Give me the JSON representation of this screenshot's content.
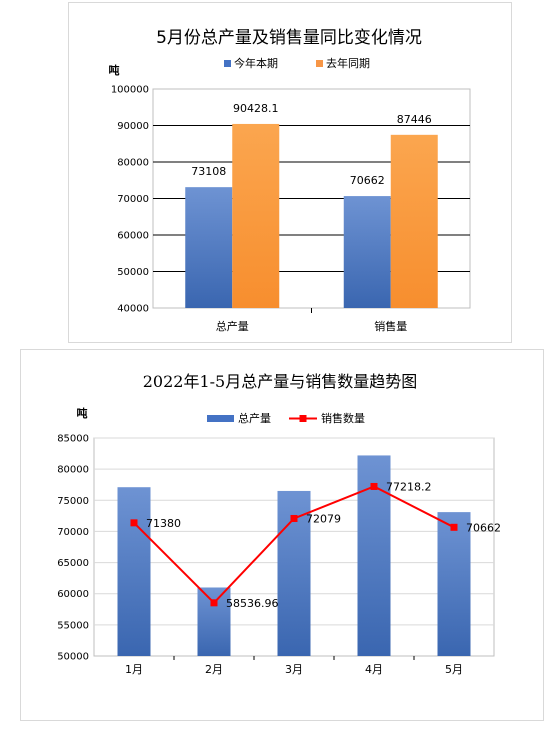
{
  "chart_data": [
    {
      "type": "bar",
      "title": "5月份总产量及销售量同比变化情况",
      "ylabel": "吨",
      "xlabel": "",
      "categories": [
        "总产量",
        "销售量"
      ],
      "series": [
        {
          "name": "今年本期",
          "values": [
            73108,
            70662
          ],
          "labels": [
            "73108",
            "70662"
          ],
          "color": "#4472c4"
        },
        {
          "name": "去年同期",
          "values": [
            90428.1,
            87446
          ],
          "labels": [
            "90428.1",
            "87446"
          ],
          "color": "#f79646"
        }
      ],
      "ylim": [
        40000,
        100000
      ],
      "yticks": [
        40000,
        50000,
        60000,
        70000,
        80000,
        90000,
        100000
      ],
      "ytick_labels": [
        "40000",
        "50000",
        "60000",
        "70000",
        "80000",
        "90000",
        "100000"
      ],
      "grid": true,
      "legend": "top-center"
    },
    {
      "type": "bar",
      "title": "2022年1-5月总产量与销售数量趋势图",
      "ylabel": "吨",
      "xlabel": "",
      "categories": [
        "1月",
        "2月",
        "3月",
        "4月",
        "5月"
      ],
      "series": [
        {
          "name": "总产量",
          "kind": "bar",
          "values": [
            77100,
            61000,
            76500,
            82200,
            73100
          ],
          "color": "#4472c4"
        },
        {
          "name": "销售数量",
          "kind": "line",
          "values": [
            71380,
            58536.96,
            72079,
            77218.2,
            70662
          ],
          "labels": [
            "71380",
            "58536.96",
            "72079",
            "77218.2",
            "70662"
          ],
          "color": "#ff0000"
        }
      ],
      "ylim": [
        50000,
        85000
      ],
      "yticks": [
        50000,
        55000,
        60000,
        65000,
        70000,
        75000,
        80000,
        85000
      ],
      "ytick_labels": [
        "50000",
        "55000",
        "60000",
        "65000",
        "70000",
        "75000",
        "80000",
        "85000"
      ],
      "grid": true,
      "legend": "top-center"
    }
  ]
}
